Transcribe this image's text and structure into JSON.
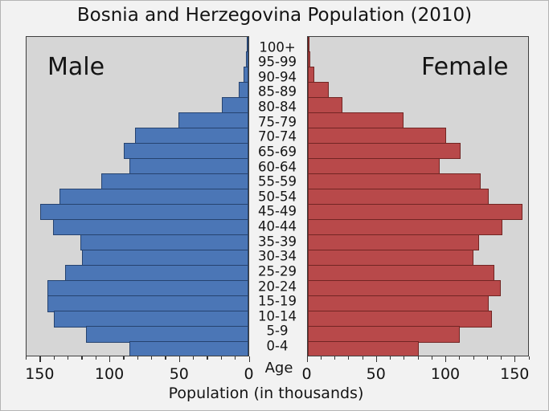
{
  "title": "Bosnia and Herzegovina Population (2010)",
  "male_label": "Male",
  "female_label": "Female",
  "age_label": "Age",
  "xlabel": "Population (in thousands)",
  "axis_ticks": {
    "left": [
      "150",
      "100",
      "50",
      "0"
    ],
    "right": [
      "0",
      "50",
      "100",
      "150"
    ]
  },
  "colors": {
    "male_fill": "#4b76b6",
    "male_edge": "#26436f",
    "female_fill": "#b8494a",
    "female_edge": "#722523",
    "panel_bg": "#d6d6d6",
    "figure_bg": "#f2f2f2"
  },
  "chart_data": {
    "type": "bar",
    "subtype": "population-pyramid",
    "title": "Bosnia and Herzegovina Population (2010)",
    "xlabel": "Population (in thousands)",
    "ylabel": "Age",
    "xlim": [
      0,
      160
    ],
    "categories": [
      "100+",
      "95-99",
      "90-94",
      "85-89",
      "80-84",
      "75-79",
      "70-74",
      "65-69",
      "60-64",
      "55-59",
      "50-54",
      "45-49",
      "40-44",
      "35-39",
      "30-34",
      "25-29",
      "20-24",
      "15-19",
      "10-14",
      "5-9",
      "0-4"
    ],
    "series": [
      {
        "name": "Male",
        "values": [
          0.3,
          1.2,
          3,
          6.5,
          19,
          50,
          81,
          89,
          85,
          105,
          135,
          149,
          140,
          120,
          119,
          131,
          144,
          144,
          139,
          116,
          85
        ]
      },
      {
        "name": "Female",
        "values": [
          0.7,
          2,
          5,
          15.5,
          25,
          69.5,
          100,
          110.5,
          95.5,
          125,
          130.5,
          155,
          140.5,
          124,
          119.5,
          134.5,
          139.5,
          131,
          133,
          110,
          80
        ]
      }
    ]
  }
}
